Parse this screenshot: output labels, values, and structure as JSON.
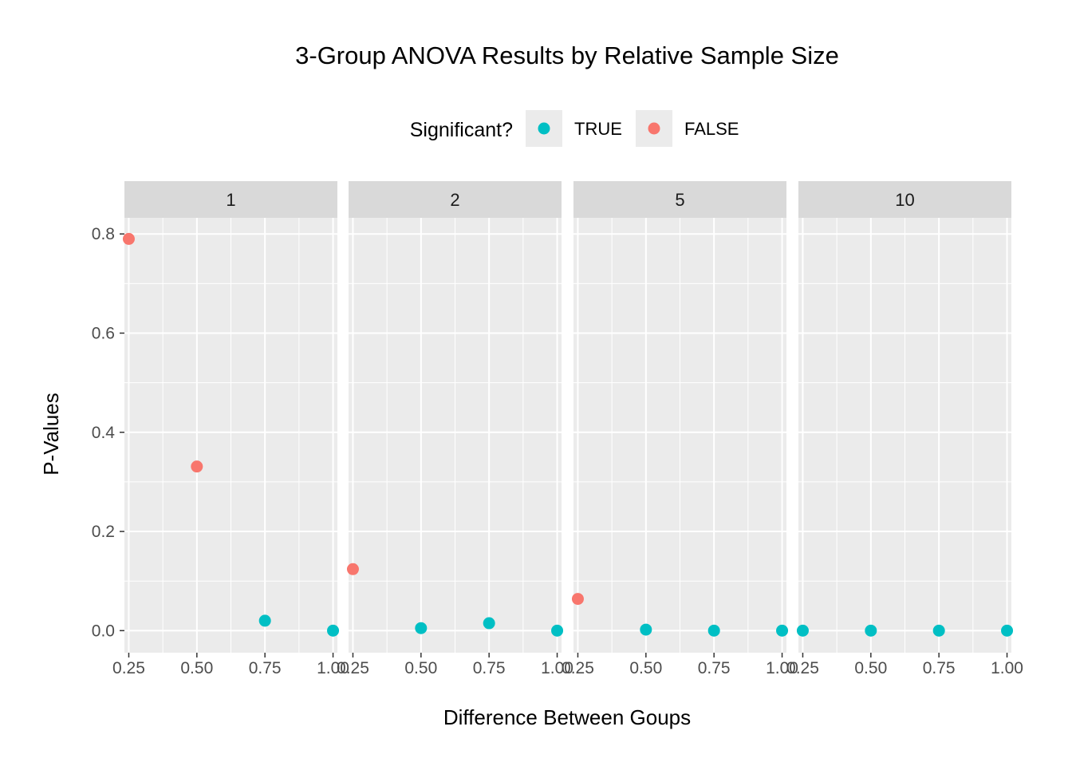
{
  "chart_data": {
    "type": "scatter",
    "title": "3-Group ANOVA Results by Relative Sample Size",
    "xlabel": "Difference Between Goups",
    "ylabel": "P-Values",
    "xlim": [
      0.234,
      1.016
    ],
    "ylim": [
      -0.0445,
      0.8325
    ],
    "x_ticks": [
      0.25,
      0.5,
      0.75,
      1.0
    ],
    "x_tick_labels": [
      "0.25",
      "0.50",
      "0.75",
      "1.00"
    ],
    "y_ticks": [
      0.0,
      0.2,
      0.4,
      0.6,
      0.8
    ],
    "y_tick_labels": [
      "0.0",
      "0.2",
      "0.4",
      "0.6",
      "0.8"
    ],
    "grid": true,
    "legend": {
      "title": "Significant?",
      "position": "top",
      "entries": [
        {
          "label": "TRUE",
          "color": "#00BFC4"
        },
        {
          "label": "FALSE",
          "color": "#F8766D"
        }
      ]
    },
    "facets": [
      {
        "label": "1",
        "points": [
          {
            "x": 0.25,
            "y": 0.79,
            "significant": "FALSE"
          },
          {
            "x": 0.5,
            "y": 0.331,
            "significant": "FALSE"
          },
          {
            "x": 0.75,
            "y": 0.02,
            "significant": "TRUE"
          },
          {
            "x": 1.0,
            "y": 0.0,
            "significant": "TRUE"
          }
        ]
      },
      {
        "label": "2",
        "points": [
          {
            "x": 0.25,
            "y": 0.124,
            "significant": "FALSE"
          },
          {
            "x": 0.5,
            "y": 0.005,
            "significant": "TRUE"
          },
          {
            "x": 0.75,
            "y": 0.015,
            "significant": "TRUE"
          },
          {
            "x": 1.0,
            "y": 0.0,
            "significant": "TRUE"
          }
        ]
      },
      {
        "label": "5",
        "points": [
          {
            "x": 0.25,
            "y": 0.064,
            "significant": "FALSE"
          },
          {
            "x": 0.5,
            "y": 0.002,
            "significant": "TRUE"
          },
          {
            "x": 0.75,
            "y": 0.0,
            "significant": "TRUE"
          },
          {
            "x": 1.0,
            "y": 0.0,
            "significant": "TRUE"
          }
        ]
      },
      {
        "label": "10",
        "points": [
          {
            "x": 0.25,
            "y": 0.0,
            "significant": "TRUE"
          },
          {
            "x": 0.5,
            "y": 0.0,
            "significant": "TRUE"
          },
          {
            "x": 0.75,
            "y": 0.0,
            "significant": "TRUE"
          },
          {
            "x": 1.0,
            "y": 0.0,
            "significant": "TRUE"
          }
        ]
      }
    ]
  }
}
